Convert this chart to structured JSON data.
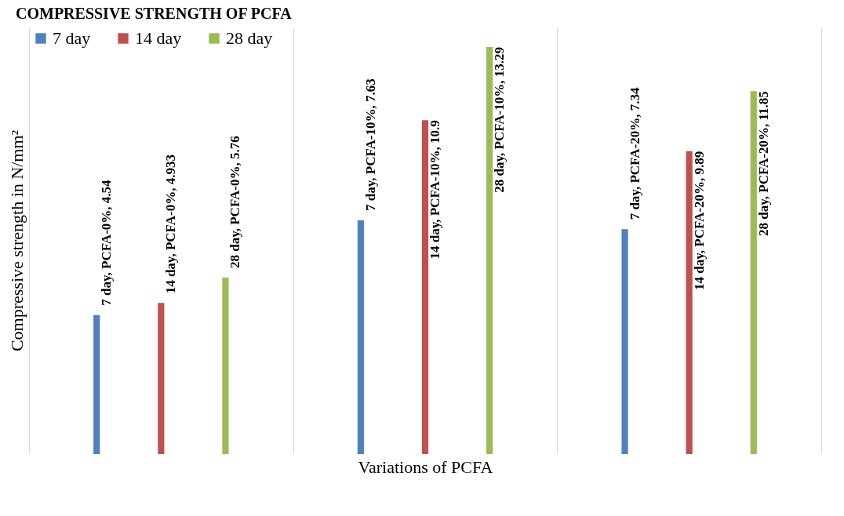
{
  "chart_data": {
    "type": "bar",
    "title": "COMPRESSIVE STRENGTH OF PCFA",
    "xlabel": "Variations of PCFA",
    "ylabel": "Compressive strength in N/mm²",
    "categories": [
      null,
      null,
      null
    ],
    "relative": false,
    "grid": "x",
    "legend": "top left",
    "series": [
      {
        "name": "7 day",
        "color": "#4f81bd",
        "values": [
          4.54,
          7.63,
          7.34
        ],
        "value_labels": [
          "7 day, PCFA-0%, 4.54",
          "7 day, PCFA-10%, 7.63",
          "7 day, PCFA-20%, 7.34"
        ]
      },
      {
        "name": "14 day",
        "color": "#c0504d",
        "values": [
          4.933,
          10.9,
          9.89
        ],
        "value_labels": [
          "14 day, PCFA-0%, 4.933",
          "14 day, PCFA-10%, 10.9",
          "14 day, PCFA-20%, 9.89"
        ]
      },
      {
        "name": "28 day",
        "color": "#9bbb59",
        "values": [
          5.76,
          13.29,
          11.85
        ],
        "value_labels": [
          "28 day, PCFA-0%, 5.76",
          "28 day, PCFA-10%, 13.29",
          "28 day, PCFA-20%, 11.85"
        ]
      }
    ]
  }
}
